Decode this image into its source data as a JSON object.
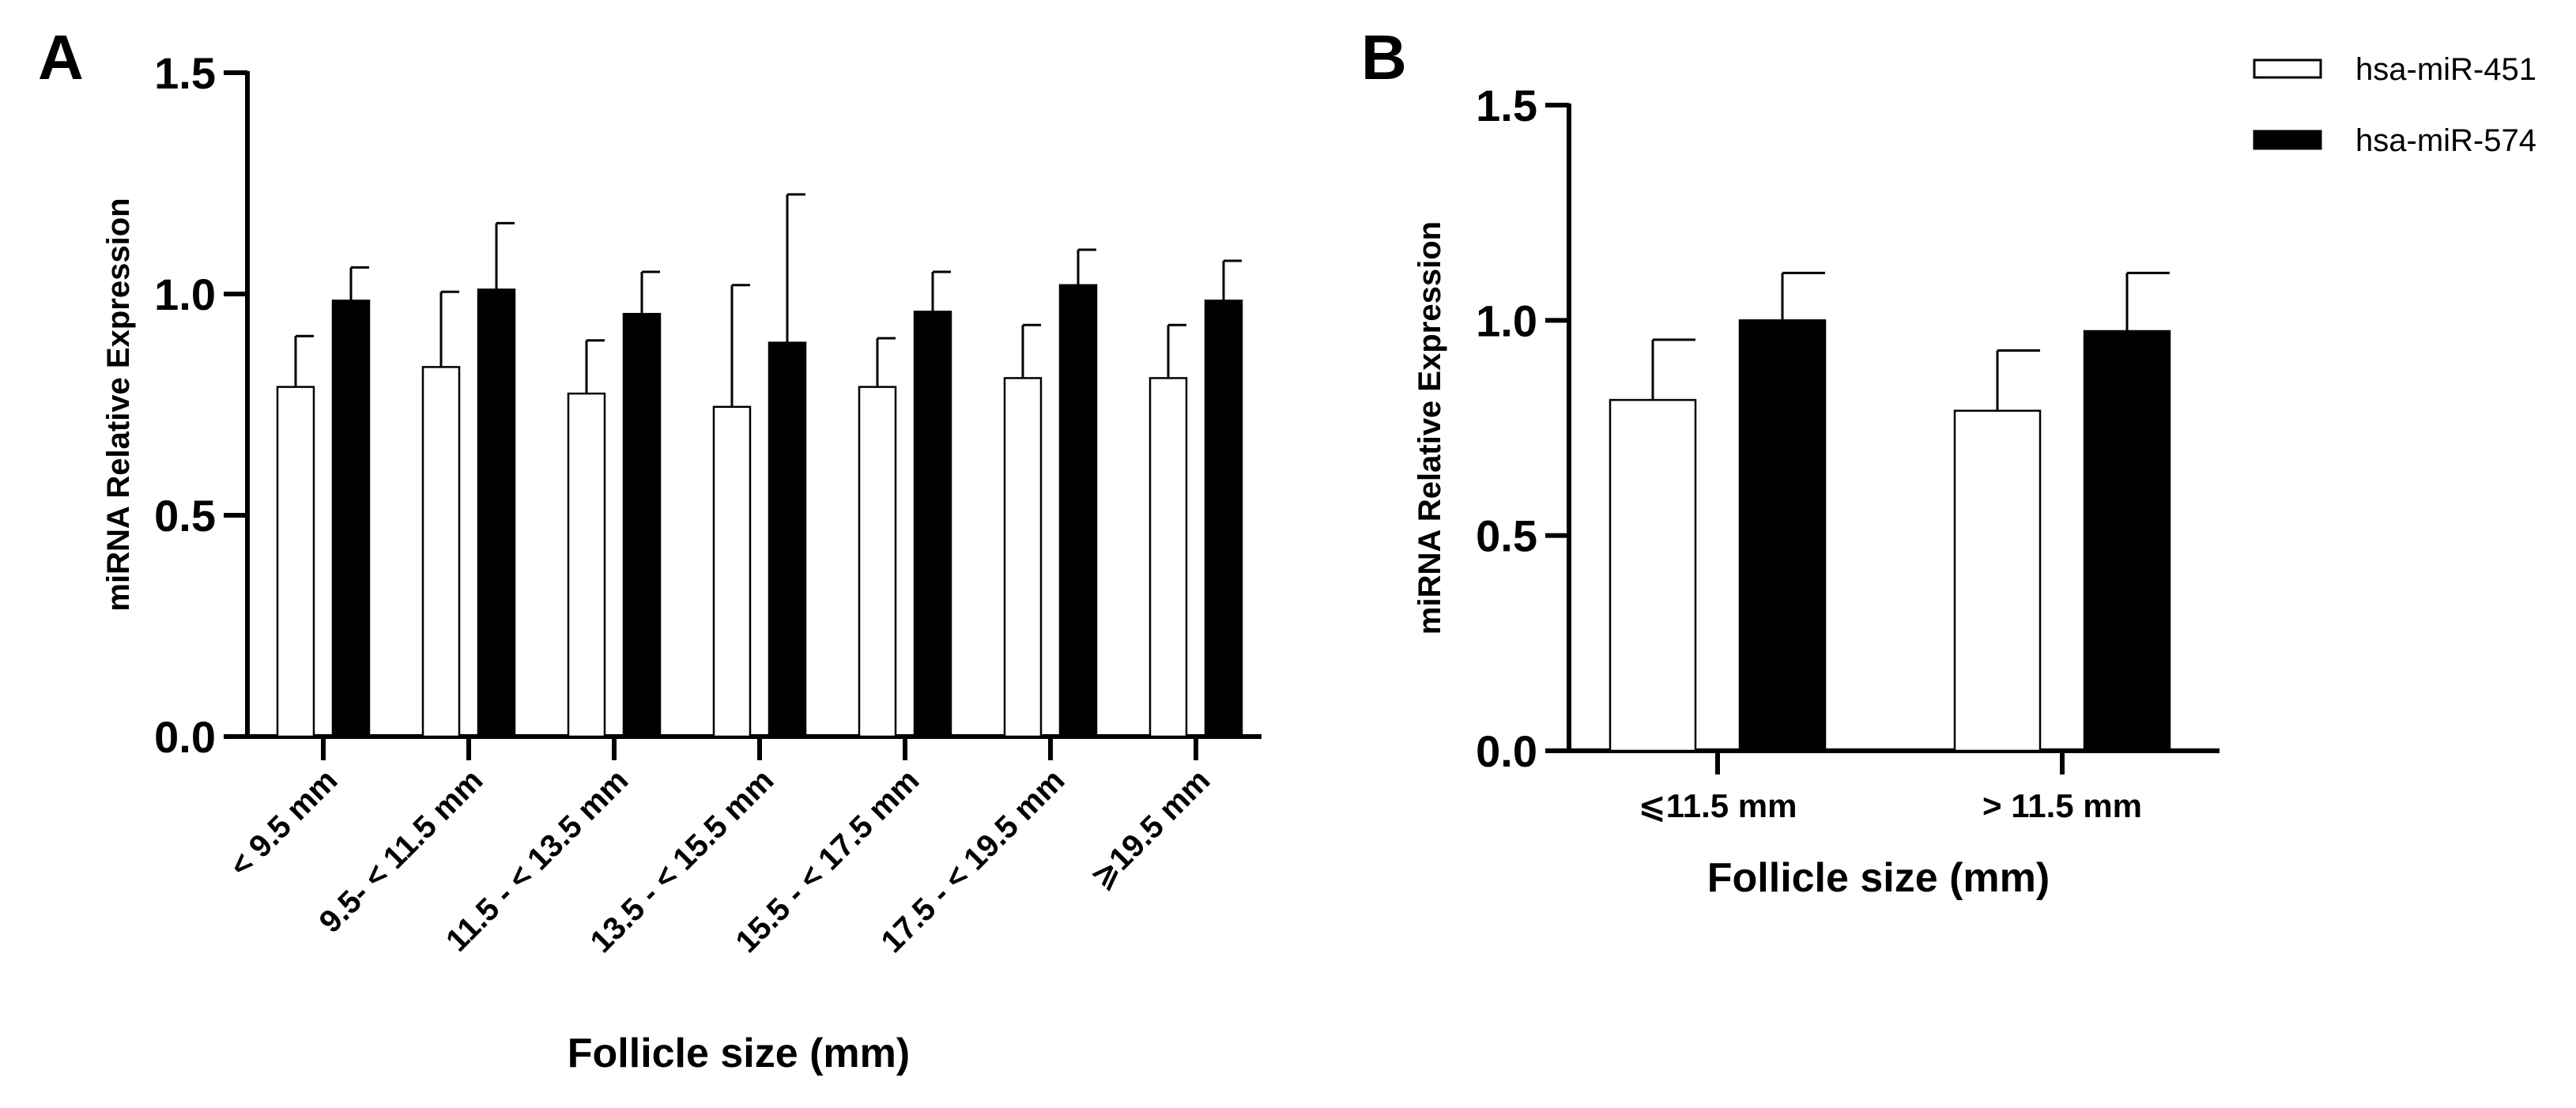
{
  "colors": {
    "miR451_fill": "#ffffff",
    "miR574_fill": "#000000",
    "stroke": "#000000"
  },
  "legend": [
    {
      "name": "hsa-miR-451",
      "fill": "#ffffff"
    },
    {
      "name": "hsa-miR-574",
      "fill": "#000000"
    }
  ],
  "chart_data": [
    {
      "panel": "A",
      "type": "bar",
      "xlabel": "Follicle size (mm)",
      "ylabel": "miRNA Relative Expression",
      "ylim": [
        0,
        1.5
      ],
      "yticks": [
        "0.0",
        "0.5",
        "1.0",
        "1.5"
      ],
      "categories": [
        "< 9.5 mm",
        "9.5- < 11.5 mm",
        "11.5 - < 13.5 mm",
        "13.5 - < 15.5 mm",
        "15.5 - < 17.5 mm",
        "17.5 - < 19.5 mm",
        "⩾19.5 mm"
      ],
      "series": [
        {
          "name": "hsa-miR-451",
          "values": [
            0.79,
            0.835,
            0.775,
            0.745,
            0.79,
            0.81,
            0.81
          ],
          "errors": [
            0.115,
            0.17,
            0.12,
            0.275,
            0.11,
            0.12,
            0.12
          ]
        },
        {
          "name": "hsa-miR-574",
          "values": [
            0.985,
            1.01,
            0.955,
            0.89,
            0.96,
            1.02,
            0.985
          ],
          "errors": [
            0.075,
            0.15,
            0.095,
            0.335,
            0.09,
            0.08,
            0.09
          ]
        }
      ]
    },
    {
      "panel": "B",
      "type": "bar",
      "xlabel": "Follicle size (mm)",
      "ylabel": "miRNA Relative Expression",
      "ylim": [
        0,
        1.5
      ],
      "yticks": [
        "0.0",
        "0.5",
        "1.0",
        "1.5"
      ],
      "categories": [
        "⩽11.5 mm",
        "> 11.5 mm"
      ],
      "series": [
        {
          "name": "hsa-miR-451",
          "values": [
            0.815,
            0.79
          ],
          "errors": [
            0.14,
            0.14
          ]
        },
        {
          "name": "hsa-miR-574",
          "values": [
            1.0,
            0.975
          ],
          "errors": [
            0.11,
            0.135
          ]
        }
      ]
    }
  ]
}
